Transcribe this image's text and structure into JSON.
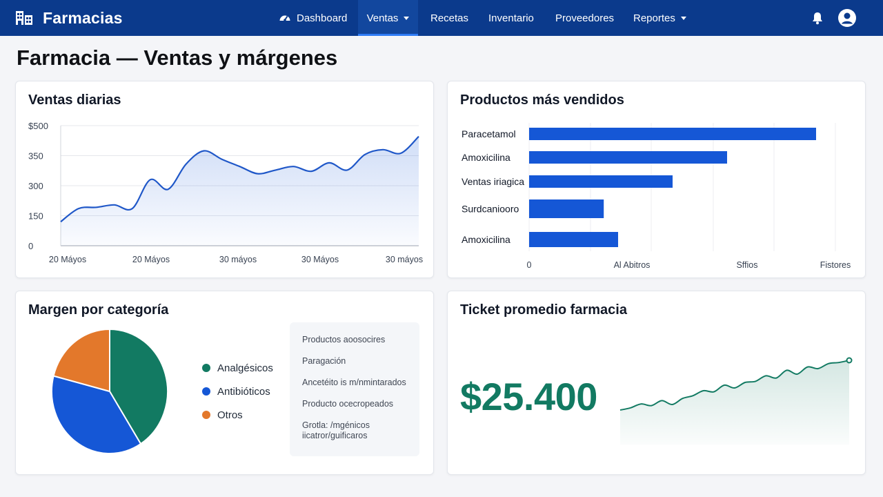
{
  "app": {
    "name": "Farmacias"
  },
  "nav": {
    "items": [
      {
        "label": "Dashboard"
      },
      {
        "label": "Ventas"
      },
      {
        "label": "Recetas"
      },
      {
        "label": "Inventario"
      },
      {
        "label": "Proveedores"
      },
      {
        "label": "Reportes"
      }
    ],
    "active": "Ventas"
  },
  "page": {
    "title": "Farmacia — Ventas y márgenes"
  },
  "colors": {
    "navbar": "#0b3a8c",
    "accent": "#1557d6",
    "green": "#127a62",
    "orange": "#e3782b"
  },
  "cards": {
    "ventas": {
      "title": "Ventas diarias"
    },
    "productos": {
      "title": "Productos más vendidos"
    },
    "margen": {
      "title": "Margen por categoría",
      "notes": [
        "Productos aoosocires",
        "Paragación",
        "Ancetéito is m/nmintarados",
        "Producto ocecropeados",
        "Grotla: /mgénicos",
        "iicatror/guificaros"
      ]
    },
    "ticket": {
      "title": "Ticket promedio farmacia",
      "value": "$25.400"
    }
  },
  "chart_data": [
    {
      "type": "area",
      "title": "Ventas diarias",
      "y_tick_labels": [
        "$500",
        "350",
        "300",
        "150",
        "0"
      ],
      "x_tick_labels": [
        "20 Máyos",
        "20 Máyos",
        "30 máyos",
        "30 Máyos",
        "30 máyos"
      ],
      "series": [
        {
          "values": [
            100,
            155,
            160,
            170,
            155,
            275,
            235,
            340,
            395,
            360,
            330,
            300,
            315,
            330,
            310,
            345,
            315,
            380,
            400,
            385,
            455
          ]
        }
      ],
      "grid": true
    },
    {
      "type": "bar",
      "orientation": "horizontal",
      "title": "Productos más vendidos",
      "categories": [
        "Paracetamol",
        "Amoxicilina",
        "Ventas iriagica",
        "Surdcaniooro",
        "Amoxicilina"
      ],
      "values": [
        100,
        69,
        50,
        26,
        31
      ],
      "x_tick_labels": [
        "0",
        "Al Abitros",
        "Sffios",
        "Fistores"
      ],
      "grid": true
    },
    {
      "type": "pie",
      "title": "Margen por categoría",
      "categories": [
        "Analgésicos",
        "Antibióticos",
        "Otros"
      ],
      "values": [
        41,
        38,
        21
      ],
      "colors": [
        "#127a62",
        "#1557d6",
        "#e3782b"
      ]
    },
    {
      "type": "line",
      "title": "Ticket promedio farmacia",
      "series": [
        {
          "values": [
            10,
            14,
            21,
            18,
            27,
            20,
            31,
            36,
            45,
            43,
            55,
            50,
            60,
            62,
            72,
            68,
            82,
            75,
            88,
            85,
            94,
            96,
            100
          ]
        }
      ]
    }
  ]
}
